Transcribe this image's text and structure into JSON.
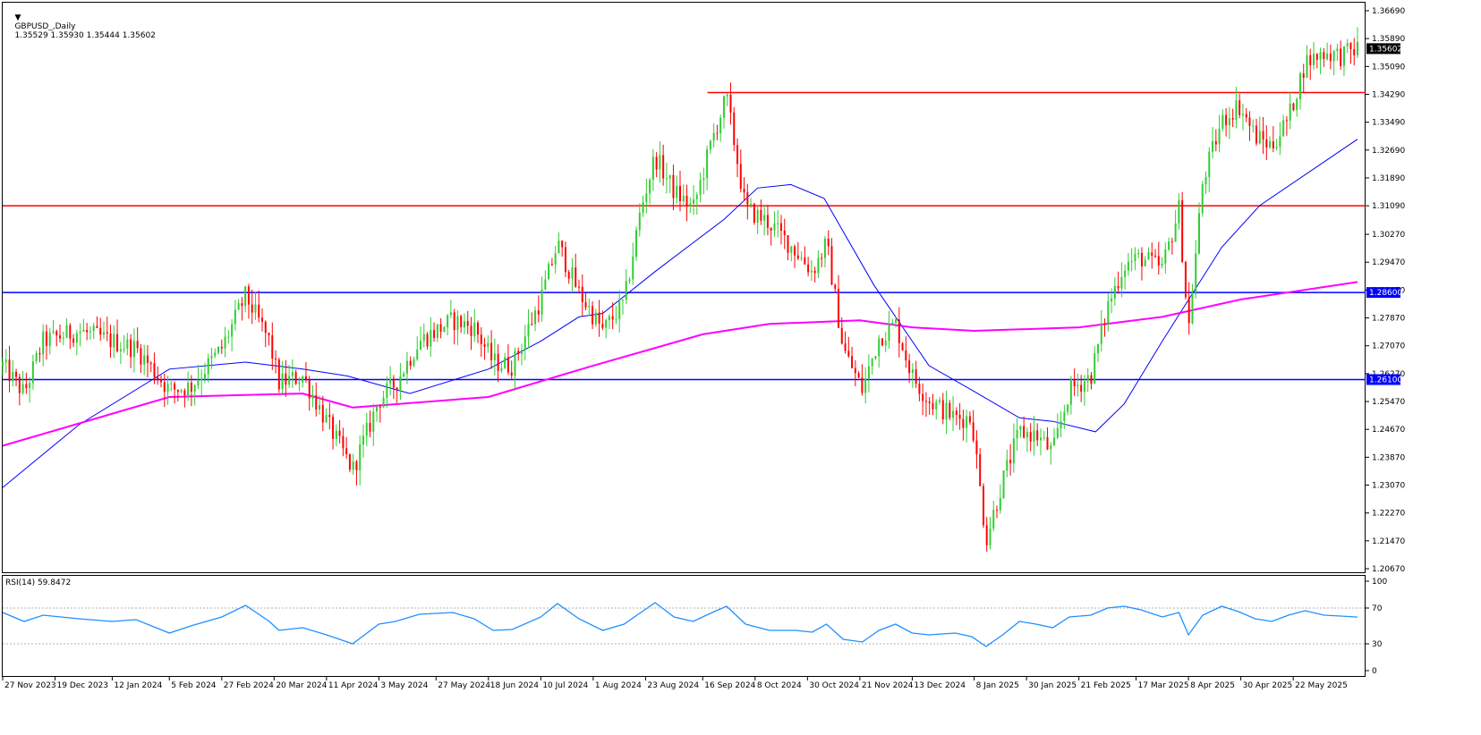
{
  "header": {
    "symbol": "GBPUSD_,Daily",
    "ohlc": "1.35529 1.35930 1.35444 1.35602"
  },
  "rsi_header": "RSI(14) 59.8472",
  "colors": {
    "bull": "#32cd32",
    "bear": "#ff0000",
    "ma_short": "#0000ff",
    "ma_long": "#ff00ff",
    "rsi": "#1e90ff",
    "resistance": "#ff0000",
    "support": "#0000ff",
    "grid": "#000000"
  },
  "chart_data": [
    {
      "type": "candlestick",
      "title": "GBPUSD_,Daily",
      "ylim": [
        1.2067,
        1.3669
      ],
      "y_ticks": [
        "1.36690",
        "1.35890",
        "1.35090",
        "1.34290",
        "1.33490",
        "1.32690",
        "1.31890",
        "1.31090",
        "1.30270",
        "1.29470",
        "1.28670",
        "1.27870",
        "1.27070",
        "1.26270",
        "1.25470",
        "1.24670",
        "1.23870",
        "1.23070",
        "1.22270",
        "1.21470",
        "1.20670"
      ],
      "x_ticks": [
        "27 Nov 2023",
        "19 Dec 2023",
        "12 Jan 2024",
        "5 Feb 2024",
        "27 Feb 2024",
        "20 Mar 2024",
        "11 Apr 2024",
        "3 May 2024",
        "27 May 2024",
        "18 Jun 2024",
        "10 Jul 2024",
        "1 Aug 2024",
        "23 Aug 2024",
        "16 Sep 2024",
        "8 Oct 2024",
        "30 Oct 2024",
        "21 Nov 2024",
        "13 Dec 2024",
        "8 Jan 2025",
        "30 Jan 2025",
        "21 Feb 2025",
        "17 Mar 2025",
        "8 Apr 2025",
        "30 Apr 2025",
        "22 May 2025"
      ],
      "current_price_label": "1.35602",
      "horizontal_levels": [
        {
          "value": 1.3434,
          "color": "resistance",
          "label": "",
          "start": "18 Sep 2024"
        },
        {
          "value": 1.3109,
          "color": "resistance",
          "label": ""
        },
        {
          "value": 1.286,
          "color": "support",
          "label": "1.28600"
        },
        {
          "value": 1.261,
          "color": "support",
          "label": "1.26100"
        }
      ],
      "price_path": [
        [
          "27 Nov 2023",
          1.265
        ],
        [
          "6 Dec 2023",
          1.257
        ],
        [
          "14 Dec 2023",
          1.272
        ],
        [
          "29 Dec 2023",
          1.275
        ],
        [
          "12 Jan 2024",
          1.272
        ],
        [
          "22 Jan 2024",
          1.27
        ],
        [
          "5 Feb 2024",
          1.258
        ],
        [
          "14 Feb 2024",
          1.259
        ],
        [
          "27 Feb 2024",
          1.27
        ],
        [
          "8 Mar 2024",
          1.285
        ],
        [
          "18 Mar 2024",
          1.272
        ],
        [
          "22 Mar 2024",
          1.26
        ],
        [
          "1 Apr 2024",
          1.262
        ],
        [
          "11 Apr 2024",
          1.249
        ],
        [
          "22 Apr 2024",
          1.235
        ],
        [
          "3 May 2024",
          1.255
        ],
        [
          "10 May 2024",
          1.26
        ],
        [
          "20 May 2024",
          1.272
        ],
        [
          "3 Jun 2024",
          1.278
        ],
        [
          "12 Jun 2024",
          1.276
        ],
        [
          "20 Jun 2024",
          1.266
        ],
        [
          "28 Jun 2024",
          1.265
        ],
        [
          "10 Jul 2024",
          1.284
        ],
        [
          "17 Jul 2024",
          1.3
        ],
        [
          "26 Jul 2024",
          1.286
        ],
        [
          "5 Aug 2024",
          1.275
        ],
        [
          "14 Aug 2024",
          1.283
        ],
        [
          "21 Aug 2024",
          1.31
        ],
        [
          "27 Aug 2024",
          1.325
        ],
        [
          "4 Sep 2024",
          1.315
        ],
        [
          "12 Sep 2024",
          1.31
        ],
        [
          "20 Sep 2024",
          1.33
        ],
        [
          "26 Sep 2024",
          1.342
        ],
        [
          "4 Oct 2024",
          1.31
        ],
        [
          "14 Oct 2024",
          1.306
        ],
        [
          "25 Oct 2024",
          1.298
        ],
        [
          "1 Nov 2024",
          1.292
        ],
        [
          "7 Nov 2024",
          1.3
        ],
        [
          "14 Nov 2024",
          1.27
        ],
        [
          "22 Nov 2024",
          1.258
        ],
        [
          "29 Nov 2024",
          1.273
        ],
        [
          "6 Dec 2024",
          1.277
        ],
        [
          "13 Dec 2024",
          1.262
        ],
        [
          "20 Dec 2024",
          1.255
        ],
        [
          "31 Dec 2024",
          1.25
        ],
        [
          "7 Jan 2025",
          1.25
        ],
        [
          "13 Jan 2025",
          1.215
        ],
        [
          "20 Jan 2025",
          1.232
        ],
        [
          "27 Jan 2025",
          1.246
        ],
        [
          "3 Feb 2025",
          1.245
        ],
        [
          "10 Feb 2025",
          1.24
        ],
        [
          "17 Feb 2025",
          1.258
        ],
        [
          "26 Feb 2025",
          1.262
        ],
        [
          "5 Mar 2025",
          1.282
        ],
        [
          "12 Mar 2025",
          1.294
        ],
        [
          "19 Mar 2025",
          1.296
        ],
        [
          "28 Mar 2025",
          1.293
        ],
        [
          "4 Apr 2025",
          1.31
        ],
        [
          "8 Apr 2025",
          1.275
        ],
        [
          "14 Apr 2025",
          1.318
        ],
        [
          "22 Apr 2025",
          1.335
        ],
        [
          "29 Apr 2025",
          1.34
        ],
        [
          "6 May 2025",
          1.331
        ],
        [
          "13 May 2025",
          1.328
        ],
        [
          "20 May 2025",
          1.336
        ],
        [
          "27 May 2025",
          1.352
        ],
        [
          "4 Jun 2025",
          1.355
        ],
        [
          "11 Jun 2025",
          1.354
        ],
        [
          "18 Jun 2025",
          1.356
        ]
      ],
      "series": [
        {
          "name": "",
          "color": "ma_short",
          "values": [
            [
              "27 Nov 2023",
              1.23
            ],
            [
              "29 Dec 2023",
              1.248
            ],
            [
              "5 Feb 2024",
              1.264
            ],
            [
              "8 Mar 2024",
              1.266
            ],
            [
              "1 Apr 2024",
              1.264
            ],
            [
              "20 Apr 2024",
              1.262
            ],
            [
              "16 May 2024",
              1.257
            ],
            [
              "18 Jun 2024",
              1.264
            ],
            [
              "10 Jul 2024",
              1.272
            ],
            [
              "26 Jul 2024",
              1.279
            ],
            [
              "5 Aug 2024",
              1.28
            ],
            [
              "27 Aug 2024",
              1.292
            ],
            [
              "25 Sep 2024",
              1.307
            ],
            [
              "9 Oct 2024",
              1.316
            ],
            [
              "23 Oct 2024",
              1.317
            ],
            [
              "6 Nov 2024",
              1.313
            ],
            [
              "27 Nov 2024",
              1.288
            ],
            [
              "20 Dec 2024",
              1.265
            ],
            [
              "7 Jan 2025",
              1.258
            ],
            [
              "27 Jan 2025",
              1.25
            ],
            [
              "10 Feb 2025",
              1.249
            ],
            [
              "28 Feb 2025",
              1.246
            ],
            [
              "12 Mar 2025",
              1.254
            ],
            [
              "28 Mar 2025",
              1.272
            ],
            [
              "22 Apr 2025",
              1.299
            ],
            [
              "8 May 2025",
              1.311
            ],
            [
              "18 Jun 2025",
              1.33
            ]
          ]
        },
        {
          "name": "",
          "color": "ma_long",
          "values": [
            [
              "27 Nov 2023",
              1.242
            ],
            [
              "5 Feb 2024",
              1.256
            ],
            [
              "1 Apr 2024",
              1.257
            ],
            [
              "22 Apr 2024",
              1.253
            ],
            [
              "18 Jun 2024",
              1.256
            ],
            [
              "1 Aug 2024",
              1.265
            ],
            [
              "16 Sep 2024",
              1.274
            ],
            [
              "14 Oct 2024",
              1.277
            ],
            [
              "21 Nov 2024",
              1.278
            ],
            [
              "13 Dec 2024",
              1.276
            ],
            [
              "8 Jan 2025",
              1.275
            ],
            [
              "21 Feb 2025",
              1.276
            ],
            [
              "28 Mar 2025",
              1.279
            ],
            [
              "30 Apr 2025",
              1.284
            ],
            [
              "18 Jun 2025",
              1.289
            ]
          ]
        }
      ]
    },
    {
      "type": "line",
      "title": "RSI(14) 59.8472",
      "ylim": [
        0,
        100
      ],
      "y_ticks": [
        "100",
        "70",
        "30",
        "0"
      ],
      "levels": [
        70,
        30
      ],
      "series": [
        {
          "name": "RSI(14)",
          "color": "rsi",
          "values": [
            [
              "27 Nov 2023",
              65
            ],
            [
              "6 Dec 2023",
              55
            ],
            [
              "14 Dec 2023",
              62
            ],
            [
              "29 Dec 2023",
              58
            ],
            [
              "12 Jan 2024",
              55
            ],
            [
              "22 Jan 2024",
              57
            ],
            [
              "5 Feb 2024",
              42
            ],
            [
              "14 Feb 2024",
              50
            ],
            [
              "27 Feb 2024",
              60
            ],
            [
              "8 Mar 2024",
              73
            ],
            [
              "18 Mar 2024",
              55
            ],
            [
              "22 Mar 2024",
              45
            ],
            [
              "1 Apr 2024",
              48
            ],
            [
              "11 Apr 2024",
              40
            ],
            [
              "22 Apr 2024",
              30
            ],
            [
              "3 May 2024",
              52
            ],
            [
              "10 May 2024",
              55
            ],
            [
              "20 May 2024",
              63
            ],
            [
              "3 Jun 2024",
              65
            ],
            [
              "12 Jun 2024",
              58
            ],
            [
              "20 Jun 2024",
              45
            ],
            [
              "28 Jun 2024",
              46
            ],
            [
              "10 Jul 2024",
              60
            ],
            [
              "17 Jul 2024",
              75
            ],
            [
              "26 Jul 2024",
              58
            ],
            [
              "5 Aug 2024",
              45
            ],
            [
              "14 Aug 2024",
              52
            ],
            [
              "21 Aug 2024",
              65
            ],
            [
              "27 Aug 2024",
              76
            ],
            [
              "4 Sep 2024",
              60
            ],
            [
              "12 Sep 2024",
              55
            ],
            [
              "20 Sep 2024",
              65
            ],
            [
              "26 Sep 2024",
              72
            ],
            [
              "4 Oct 2024",
              52
            ],
            [
              "14 Oct 2024",
              45
            ],
            [
              "25 Oct 2024",
              45
            ],
            [
              "1 Nov 2024",
              43
            ],
            [
              "7 Nov 2024",
              52
            ],
            [
              "14 Nov 2024",
              35
            ],
            [
              "22 Nov 2024",
              32
            ],
            [
              "29 Nov 2024",
              45
            ],
            [
              "6 Dec 2024",
              52
            ],
            [
              "13 Dec 2024",
              42
            ],
            [
              "20 Dec 2024",
              40
            ],
            [
              "31 Dec 2024",
              42
            ],
            [
              "7 Jan 2025",
              38
            ],
            [
              "13 Jan 2025",
              27
            ],
            [
              "20 Jan 2025",
              40
            ],
            [
              "27 Jan 2025",
              55
            ],
            [
              "3 Feb 2025",
              52
            ],
            [
              "10 Feb 2025",
              48
            ],
            [
              "17 Feb 2025",
              60
            ],
            [
              "26 Feb 2025",
              62
            ],
            [
              "5 Mar 2025",
              70
            ],
            [
              "12 Mar 2025",
              72
            ],
            [
              "19 Mar 2025",
              68
            ],
            [
              "28 Mar 2025",
              60
            ],
            [
              "4 Apr 2025",
              65
            ],
            [
              "8 Apr 2025",
              40
            ],
            [
              "14 Apr 2025",
              62
            ],
            [
              "22 Apr 2025",
              72
            ],
            [
              "29 Apr 2025",
              66
            ],
            [
              "6 May 2025",
              58
            ],
            [
              "13 May 2025",
              55
            ],
            [
              "20 May 2025",
              62
            ],
            [
              "27 May 2025",
              67
            ],
            [
              "4 Jun 2025",
              62
            ],
            [
              "11 Jun 2025",
              61
            ],
            [
              "18 Jun 2025",
              59.85
            ]
          ]
        }
      ]
    }
  ]
}
